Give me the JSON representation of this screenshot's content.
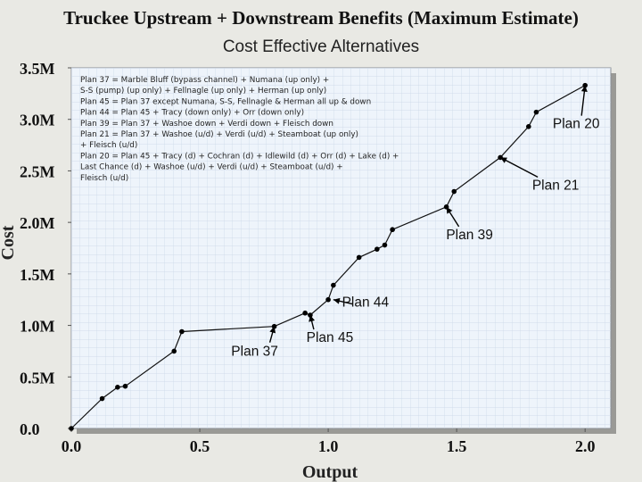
{
  "chart_data": {
    "type": "line",
    "title": "Truckee Upstream + Downstream Benefits (Maximum Estimate)",
    "subtitle": "Cost Effective Alternatives",
    "xlabel": "Output",
    "ylabel": "Cost",
    "xlim": [
      0,
      2.1
    ],
    "ylim": [
      0,
      3.5
    ],
    "grid": true,
    "xticks": [
      {
        "value": 0.0,
        "label": "0.0"
      },
      {
        "value": 0.5,
        "label": "0.5"
      },
      {
        "value": 1.0,
        "label": "1.0"
      },
      {
        "value": 1.5,
        "label": "1.5"
      },
      {
        "value": 2.0,
        "label": "2.0"
      }
    ],
    "yticks": [
      {
        "value": 0.0,
        "label": "0.0"
      },
      {
        "value": 0.5,
        "label": "0.5M"
      },
      {
        "value": 1.0,
        "label": "1.0M"
      },
      {
        "value": 1.5,
        "label": "1.5M"
      },
      {
        "value": 2.0,
        "label": "2.0M"
      },
      {
        "value": 2.5,
        "label": "2.5M"
      },
      {
        "value": 3.0,
        "label": "3.0M"
      },
      {
        "value": 3.5,
        "label": "3.5M"
      }
    ],
    "series": [
      {
        "name": "Cost effective alternatives",
        "x": [
          0.0,
          0.12,
          0.18,
          0.21,
          0.4,
          0.43,
          0.79,
          0.91,
          0.93,
          1.0,
          1.02,
          1.12,
          1.19,
          1.22,
          1.25,
          1.46,
          1.49,
          1.67,
          1.78,
          1.81,
          2.0
        ],
        "y": [
          0.0,
          0.29,
          0.4,
          0.41,
          0.75,
          0.94,
          0.99,
          1.12,
          1.1,
          1.25,
          1.39,
          1.66,
          1.74,
          1.78,
          1.93,
          2.15,
          2.3,
          2.63,
          2.93,
          3.07,
          3.33
        ]
      }
    ],
    "legend_lines": [
      "Plan 37 = Marble Bluff (bypass channel) + Numana (up only) +",
      "S-S (pump) (up only) + Fellnagle (up only) + Herman (up only)",
      "Plan 45 = Plan 37 except Numana, S-S, Fellnagle & Herman all up & down",
      "Plan 44 = Plan 45 + Tracy (down only) + Orr (down only)",
      "Plan 39 = Plan 37 + Washoe down + Verdi down + Fleisch down",
      "Plan 21 = Plan 37 + Washoe (u/d) + Verdi (u/d) + Steamboat (up only)",
      "+ Fleisch (u/d)",
      "Plan 20 = Plan 45 + Tracy (d) + Cochran (d) + Idlewild (d) + Orr (d) + Lake (d) +",
      "Last Chance (d) + Washoe (u/d) + Verdi (u/d) + Steamboat (u/d) +",
      "Fleisch (u/d)"
    ],
    "legend_position": "top-left",
    "annotations": [
      {
        "label": "Plan 37",
        "x": 0.79,
        "y": 0.99
      },
      {
        "label": "Plan 45",
        "x": 0.93,
        "y": 1.1
      },
      {
        "label": "Plan 44",
        "x": 1.02,
        "y": 1.25
      },
      {
        "label": "Plan 39",
        "x": 1.46,
        "y": 2.15
      },
      {
        "label": "Plan 21",
        "x": 1.67,
        "y": 2.63
      },
      {
        "label": "Plan 20",
        "x": 2.0,
        "y": 3.33
      }
    ]
  }
}
